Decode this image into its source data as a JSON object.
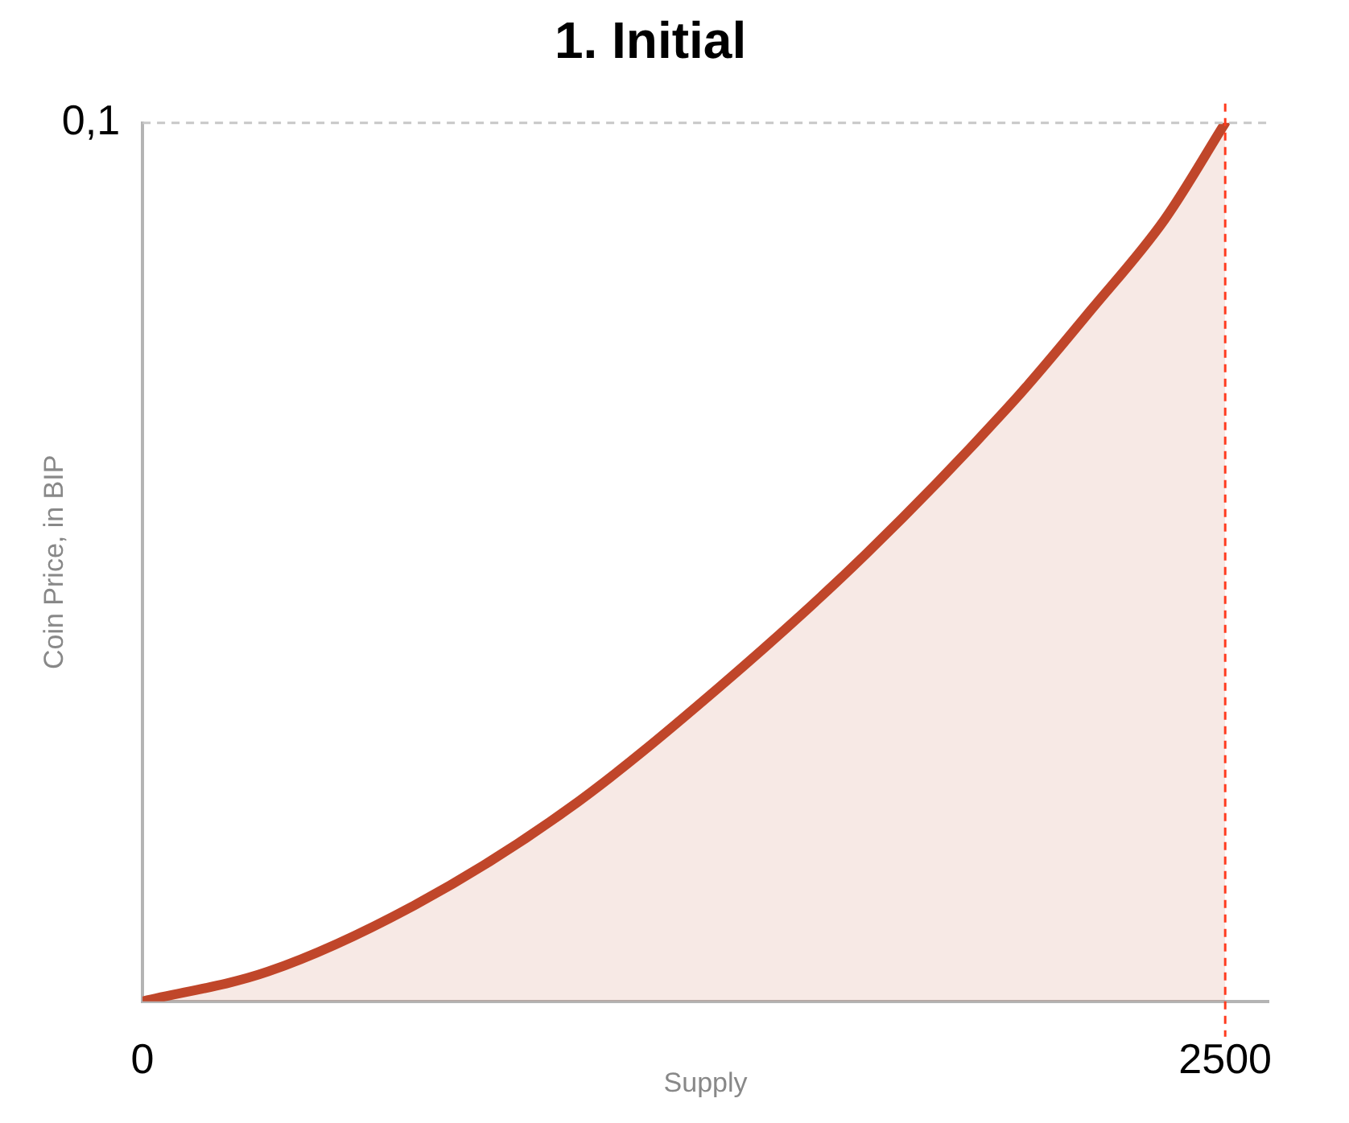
{
  "chart_data": {
    "type": "area",
    "title": "1. Initial",
    "xlabel": "Supply",
    "ylabel": "Coin Price, in BIP",
    "x": [
      0,
      290,
      630,
      980,
      1330,
      1670,
      2020,
      2190,
      2360,
      2500
    ],
    "series": [
      {
        "color": "#c0462a",
        "values": [
          0,
          0.0034,
          0.011,
          0.0218,
          0.0357,
          0.0509,
          0.0688,
          0.0787,
          0.089,
          0.1
        ]
      }
    ],
    "xlim": [
      0,
      2600
    ],
    "xticks": [
      0,
      2500
    ],
    "ylim": [
      0,
      0.1
    ],
    "yticks": [
      {
        "value": 0.1,
        "label": "0,1"
      }
    ],
    "ref_lines": [
      {
        "axis": "y",
        "value": 0.1,
        "color": "#c8c8c8",
        "line_style": "dashed"
      },
      {
        "axis": "x",
        "value": 2500,
        "color": "#ff3b1f",
        "line_style": "dashed"
      }
    ],
    "grid": false,
    "legend": false,
    "marker": "none",
    "line_style": "solid"
  }
}
